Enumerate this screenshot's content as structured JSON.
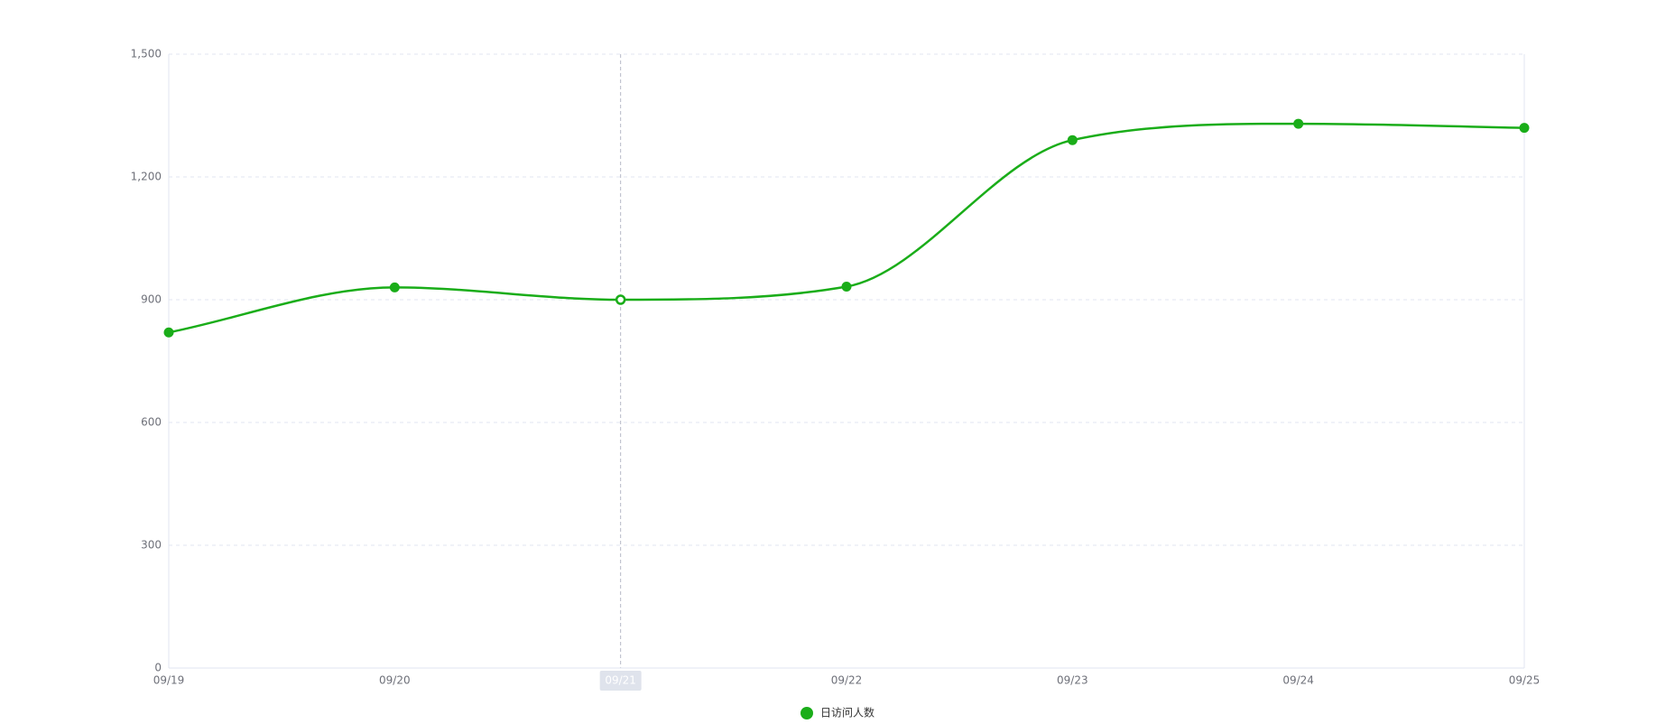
{
  "chart_data": {
    "type": "line",
    "smooth": true,
    "title": "",
    "xlabel": "",
    "ylabel": "",
    "categories": [
      "09/19",
      "09/20",
      "09/21",
      "09/22",
      "09/23",
      "09/24",
      "09/25"
    ],
    "series": [
      {
        "name": "日访问人数",
        "values": [
          820,
          930,
          900,
          932,
          1290,
          1330,
          1320
        ],
        "color": "#1aad19"
      }
    ],
    "ylim": [
      0,
      1500
    ],
    "yticks": [
      0,
      300,
      600,
      900,
      1200,
      1500
    ],
    "ytick_labels": [
      "0",
      "300",
      "600",
      "900",
      "1,200",
      "1,500"
    ],
    "grid": true,
    "legend": "bottom-center",
    "axis_pointer_category": "09/21"
  }
}
